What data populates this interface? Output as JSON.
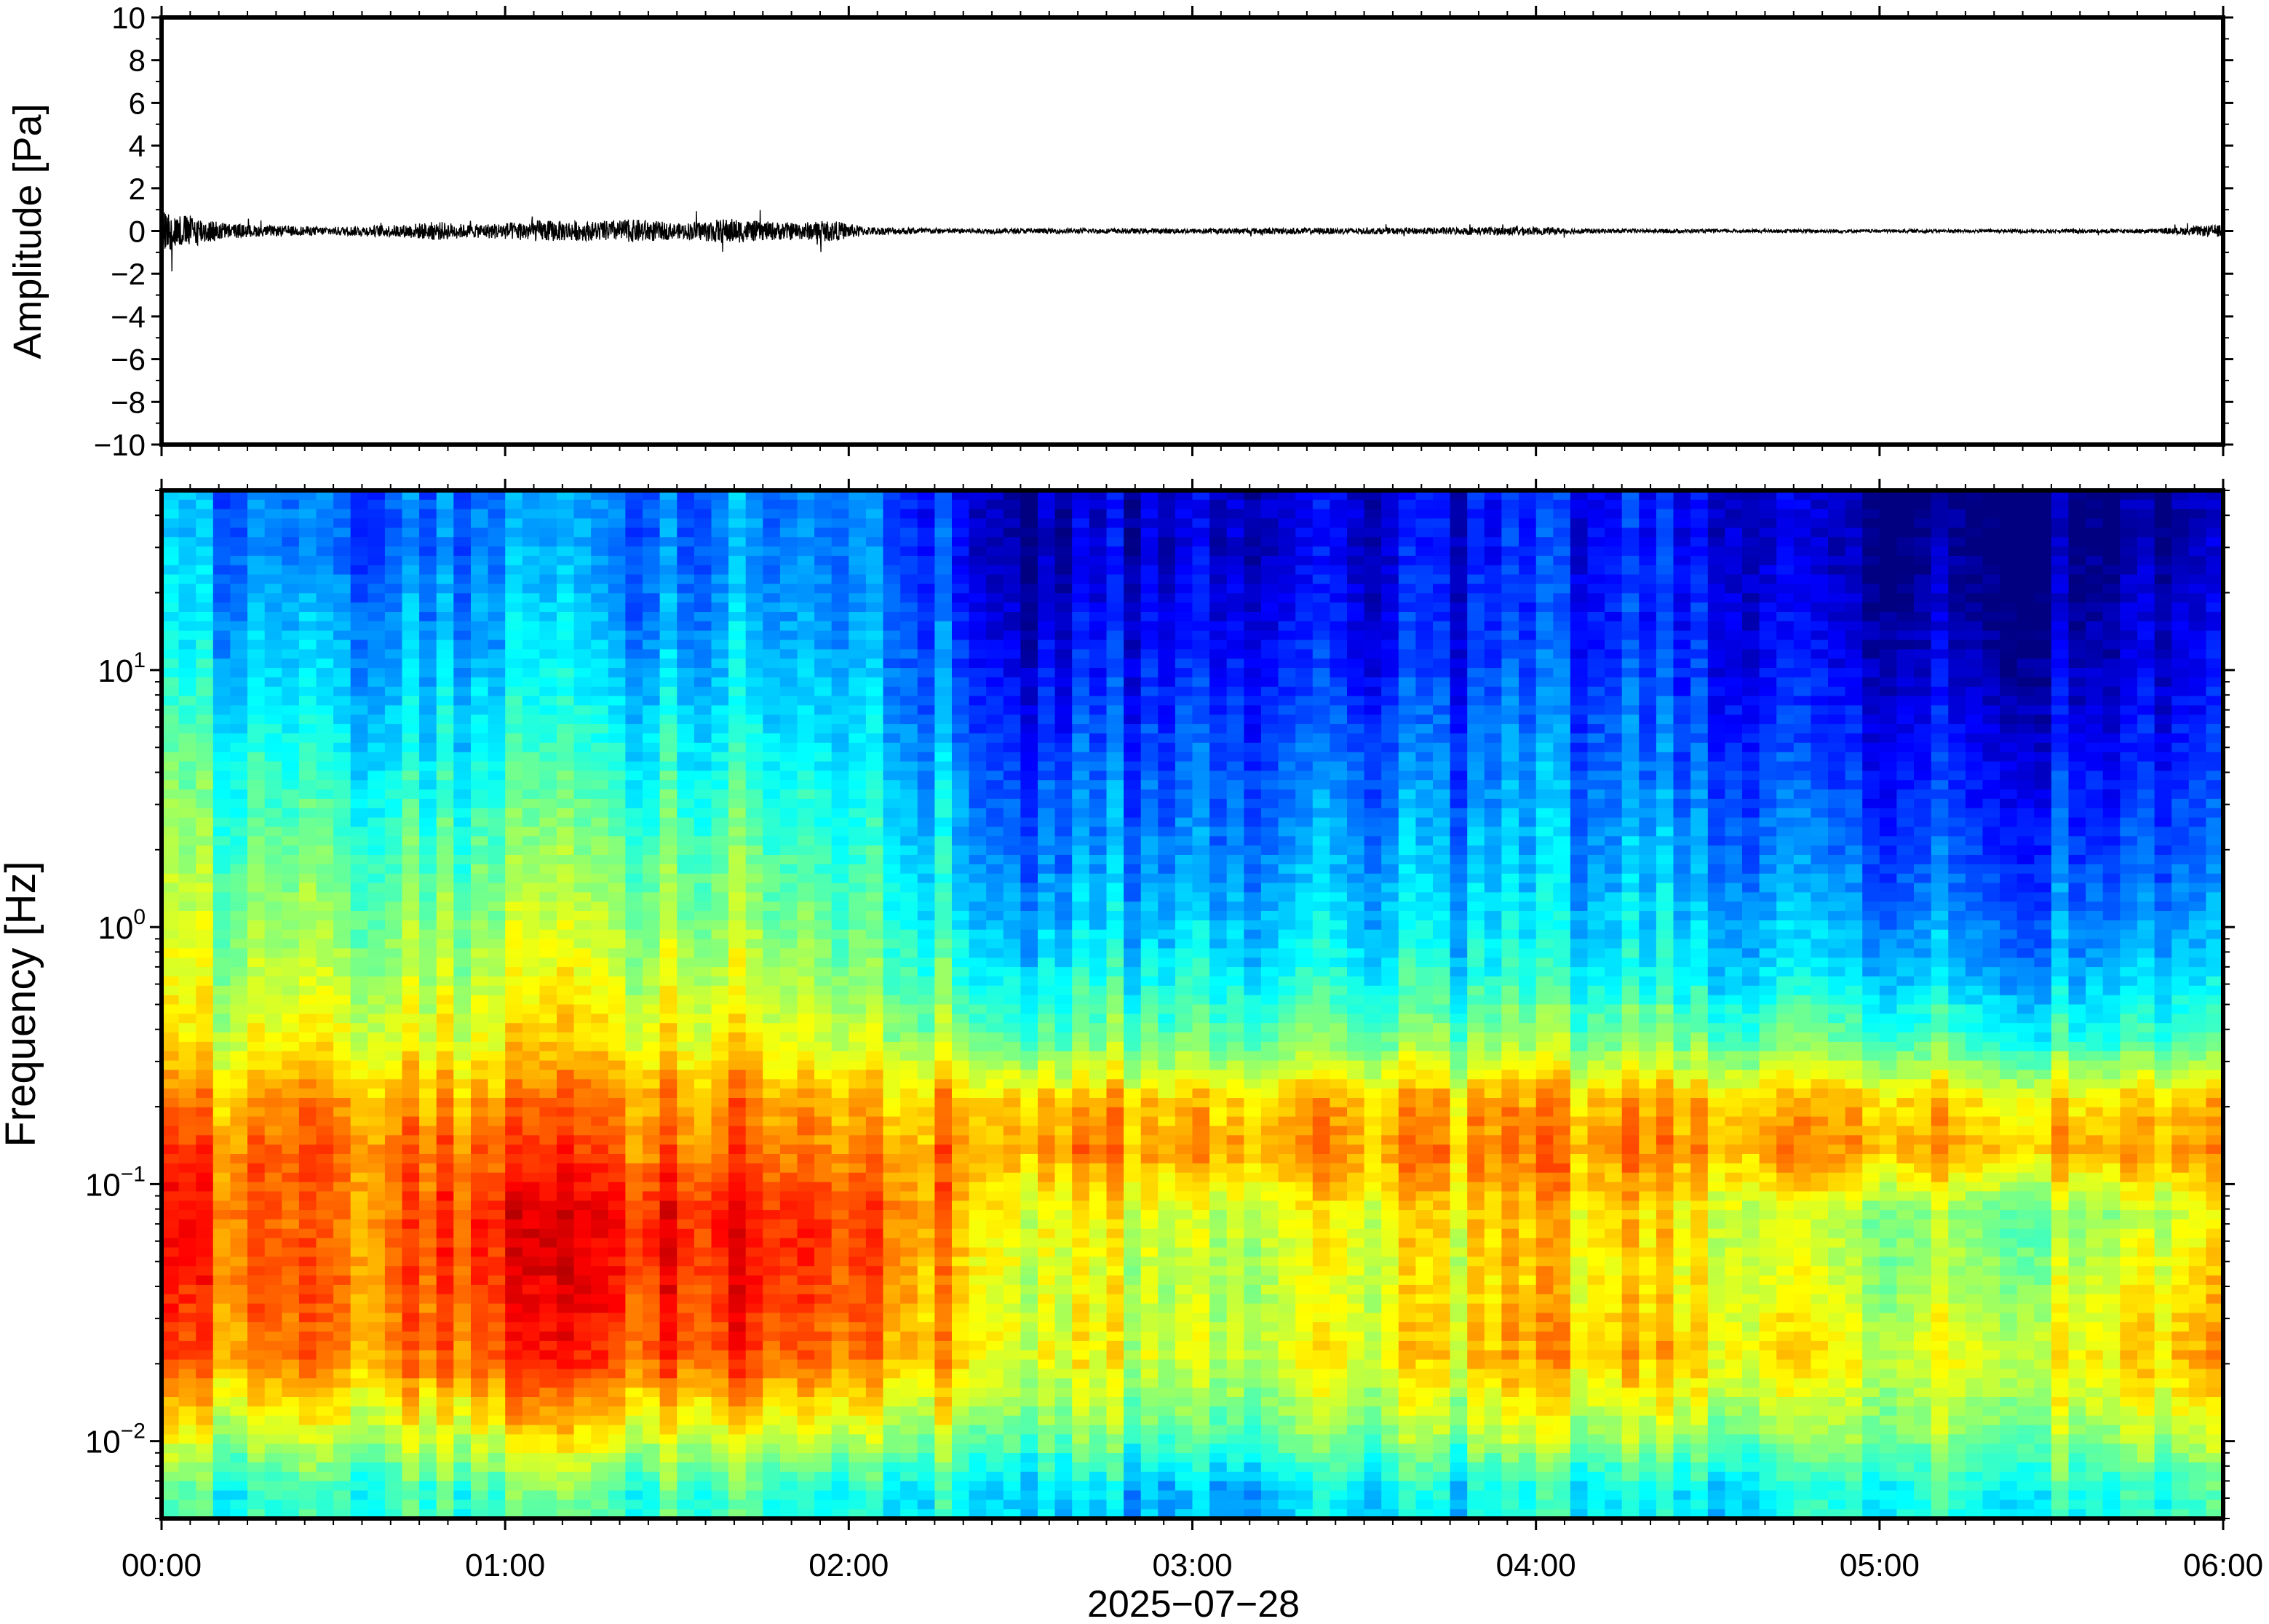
{
  "chart_data": [
    {
      "type": "line",
      "panel": "waveform",
      "title": "",
      "xlabel": "",
      "ylabel": "Amplitude [Pa]",
      "ylim": [
        -10,
        10
      ],
      "yticks": [
        10,
        8,
        6,
        4,
        2,
        0,
        -2,
        -4,
        -6,
        -8,
        -10
      ],
      "ytick_labels": [
        "10",
        "8",
        "6",
        "4",
        "2",
        "0",
        "−2",
        "−4",
        "−6",
        "−8",
        "−10"
      ],
      "xlim_hours": [
        0,
        6
      ],
      "grid": false,
      "series": [
        {
          "color": "#000000",
          "envelope": {
            "x_hours": [
              0.0,
              0.05,
              0.1,
              0.15,
              0.2,
              0.3,
              0.5,
              0.7,
              0.8,
              0.9,
              1.0,
              1.1,
              1.25,
              1.4,
              1.5,
              1.65,
              1.75,
              1.85,
              1.95,
              2.05,
              2.3,
              2.6,
              3.0,
              3.3,
              3.6,
              3.95,
              4.2,
              4.6,
              5.0,
              5.4,
              5.8,
              6.0
            ],
            "amplitude_pa": [
              1.0,
              0.8,
              0.7,
              0.5,
              0.35,
              0.25,
              0.2,
              0.3,
              0.45,
              0.3,
              0.4,
              0.5,
              0.45,
              0.55,
              0.35,
              0.6,
              0.45,
              0.4,
              0.5,
              0.2,
              0.12,
              0.12,
              0.12,
              0.15,
              0.15,
              0.2,
              0.1,
              0.08,
              0.08,
              0.08,
              0.1,
              0.3
            ]
          }
        }
      ]
    },
    {
      "type": "heatmap",
      "panel": "spectrogram",
      "title": "",
      "xlabel": "2025−07−28",
      "ylabel": "Frequency [Hz]",
      "yscale": "log",
      "ylim_hz": [
        0.005,
        50
      ],
      "yticks_hz": [
        10,
        1,
        0.1,
        0.01
      ],
      "ytick_labels": [
        {
          "base": "10",
          "exp": "1"
        },
        {
          "base": "10",
          "exp": "0"
        },
        {
          "base": "10",
          "exp": "−1"
        },
        {
          "base": "10",
          "exp": "−2"
        }
      ],
      "xticks": [
        "00:00",
        "01:00",
        "02:00",
        "03:00",
        "04:00",
        "05:00",
        "06:00"
      ],
      "xlim_hours": [
        0,
        6
      ],
      "colormap": "jet",
      "colorbar": false,
      "note_values": "relative power level, 0 = low (dark blue) to 1 = high (red)",
      "band_boundaries_hz": [
        50,
        20,
        8,
        3,
        1,
        0.5,
        0.25,
        0.18,
        0.1,
        0.06,
        0.03,
        0.015,
        0.008,
        0.005
      ],
      "time_segments_hours": [
        0,
        0.5,
        1.0,
        1.5,
        2.05,
        2.5,
        3.0,
        3.5,
        4.0,
        4.5,
        5.0,
        5.5,
        6.0
      ],
      "power_levels": [
        [
          0.3,
          0.2,
          0.25,
          0.25,
          0.28,
          0.05,
          0.1,
          0.08,
          0.15,
          0.12,
          0.0,
          0.0,
          0.05
        ],
        [
          0.35,
          0.28,
          0.3,
          0.3,
          0.32,
          0.1,
          0.15,
          0.12,
          0.18,
          0.15,
          0.05,
          0.05,
          0.1
        ],
        [
          0.45,
          0.35,
          0.38,
          0.4,
          0.38,
          0.18,
          0.22,
          0.2,
          0.25,
          0.2,
          0.12,
          0.12,
          0.15
        ],
        [
          0.52,
          0.45,
          0.48,
          0.5,
          0.45,
          0.25,
          0.28,
          0.28,
          0.3,
          0.28,
          0.2,
          0.2,
          0.22
        ],
        [
          0.58,
          0.52,
          0.56,
          0.58,
          0.52,
          0.35,
          0.38,
          0.36,
          0.38,
          0.35,
          0.3,
          0.28,
          0.32
        ],
        [
          0.62,
          0.6,
          0.62,
          0.65,
          0.6,
          0.48,
          0.5,
          0.48,
          0.52,
          0.48,
          0.45,
          0.42,
          0.45
        ],
        [
          0.72,
          0.7,
          0.72,
          0.75,
          0.72,
          0.68,
          0.68,
          0.68,
          0.7,
          0.68,
          0.66,
          0.65,
          0.68
        ],
        [
          0.8,
          0.75,
          0.78,
          0.78,
          0.76,
          0.72,
          0.74,
          0.72,
          0.74,
          0.72,
          0.7,
          0.7,
          0.72
        ],
        [
          0.85,
          0.72,
          0.86,
          0.88,
          0.84,
          0.62,
          0.58,
          0.6,
          0.68,
          0.62,
          0.5,
          0.5,
          0.6
        ],
        [
          0.82,
          0.74,
          0.84,
          0.86,
          0.82,
          0.6,
          0.56,
          0.58,
          0.66,
          0.62,
          0.52,
          0.55,
          0.66
        ],
        [
          0.78,
          0.72,
          0.8,
          0.82,
          0.78,
          0.62,
          0.58,
          0.6,
          0.7,
          0.66,
          0.58,
          0.62,
          0.7
        ],
        [
          0.6,
          0.55,
          0.62,
          0.62,
          0.6,
          0.5,
          0.48,
          0.5,
          0.55,
          0.52,
          0.5,
          0.52,
          0.58
        ],
        [
          0.42,
          0.4,
          0.45,
          0.45,
          0.42,
          0.35,
          0.3,
          0.35,
          0.38,
          0.36,
          0.38,
          0.4,
          0.42
        ]
      ]
    }
  ]
}
